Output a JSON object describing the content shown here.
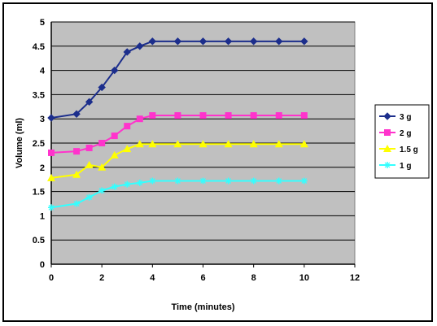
{
  "chart_data": {
    "type": "line",
    "title": "",
    "xlabel": "Time (minutes)",
    "ylabel": "Volume (ml)",
    "xlim": [
      0,
      12
    ],
    "ylim": [
      0,
      5
    ],
    "x_ticks": [
      "0",
      "2",
      "4",
      "6",
      "8",
      "10",
      "12"
    ],
    "y_ticks": [
      "0",
      "0.5",
      "1",
      "1.5",
      "2",
      "2.5",
      "3",
      "3.5",
      "4",
      "4.5",
      "5"
    ],
    "grid": true,
    "legend_position": "right",
    "plot_background": "#c0c0c0",
    "x": [
      0,
      1,
      1.5,
      2,
      2.5,
      3,
      3.5,
      4,
      5,
      6,
      7,
      8,
      9,
      10
    ],
    "series": [
      {
        "name": "3 g",
        "color": "#1c2e8c",
        "marker": "diamond",
        "values": [
          3.02,
          3.1,
          3.35,
          3.65,
          4.0,
          4.38,
          4.5,
          4.6,
          4.6,
          4.6,
          4.6,
          4.6,
          4.6,
          4.6
        ]
      },
      {
        "name": "2 g",
        "color": "#ff33cc",
        "marker": "square",
        "values": [
          2.3,
          2.33,
          2.4,
          2.5,
          2.65,
          2.85,
          3.0,
          3.07,
          3.07,
          3.07,
          3.07,
          3.07,
          3.07,
          3.07
        ]
      },
      {
        "name": "1.5 g",
        "color": "#ffff00",
        "marker": "triangle",
        "values": [
          1.78,
          1.85,
          2.05,
          2.0,
          2.25,
          2.38,
          2.48,
          2.48,
          2.48,
          2.48,
          2.48,
          2.48,
          2.48,
          2.48
        ]
      },
      {
        "name": "1 g",
        "color": "#33ffff",
        "marker": "star",
        "values": [
          1.17,
          1.25,
          1.38,
          1.52,
          1.6,
          1.65,
          1.68,
          1.72,
          1.72,
          1.72,
          1.72,
          1.72,
          1.72,
          1.72
        ]
      }
    ]
  }
}
